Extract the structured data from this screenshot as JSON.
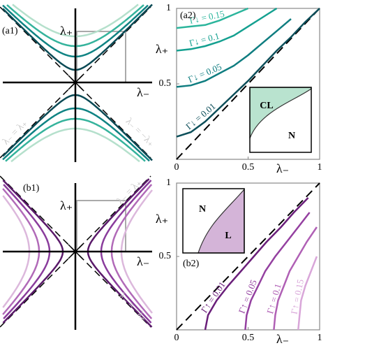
{
  "chart_data": [
    {
      "type": "hyperbola",
      "orientation": "vertical",
      "label": "(a1)",
      "x_label": "λ₋",
      "y_label": "λ₊",
      "annotations": [
        "λ₋ = λ₊",
        "λ₋ = −λ₊"
      ],
      "colors": [
        "#0a4a55",
        "#0f8383",
        "#35b39c",
        "#b5e0cc"
      ]
    },
    {
      "type": "line",
      "label": "(a2)",
      "x_label": "λ₋",
      "y_label": "λ₊",
      "xlim": [
        0,
        1
      ],
      "ylim": [
        0,
        1
      ],
      "xticks": [
        0,
        0.5,
        1
      ],
      "yticks": [
        0.5,
        1
      ],
      "inset_labels": [
        "CL",
        "N"
      ],
      "inset_color": "#b9e3cf",
      "series": [
        {
          "name": "Γ↓ = 0.01",
          "color": "#0d4f5a",
          "x": [
            0,
            0.1,
            0.2,
            0.3,
            0.4,
            0.5,
            0.6,
            0.7,
            0.8,
            0.9,
            1
          ],
          "values": [
            0.15,
            0.18,
            0.25,
            0.34,
            0.43,
            0.52,
            0.62,
            0.72,
            0.81,
            0.91,
            1.0
          ]
        },
        {
          "name": "Γ↓ = 0.05",
          "color": "#0f7d80",
          "x": [
            0,
            0.1,
            0.2,
            0.3,
            0.4,
            0.5,
            0.6,
            0.7,
            0.8
          ],
          "values": [
            0.48,
            0.49,
            0.52,
            0.57,
            0.62,
            0.69,
            0.77,
            0.85,
            0.93
          ]
        },
        {
          "name": "Γ↓ = 0.1",
          "color": "#14a090",
          "x": [
            0,
            0.1,
            0.2,
            0.3,
            0.4,
            0.5,
            0.6,
            0.7
          ],
          "values": [
            0.72,
            0.73,
            0.75,
            0.78,
            0.82,
            0.88,
            0.94,
            1.0
          ]
        },
        {
          "name": "Γ↓ = 0.15",
          "color": "#2bb59c",
          "x": [
            0,
            0.1,
            0.2,
            0.3,
            0.4,
            0.5
          ],
          "values": [
            0.87,
            0.88,
            0.89,
            0.92,
            0.96,
            1.0
          ]
        }
      ]
    },
    {
      "type": "hyperbola",
      "orientation": "horizontal",
      "label": "(b1)",
      "x_label": "λ₋",
      "y_label": "λ₊",
      "annotations": [
        "λ₋ = λ₊",
        "λ₋ = −λ₊"
      ],
      "colors": [
        "#5a1a6a",
        "#8a3c9c",
        "#b16ab8",
        "#dcb8dc"
      ]
    },
    {
      "type": "line",
      "label": "(b2)",
      "x_label": "λ₋",
      "y_label": "λ₊",
      "xlim": [
        0,
        1
      ],
      "ylim": [
        0,
        1
      ],
      "xticks": [
        0,
        0.5,
        1
      ],
      "yticks": [
        0.5,
        1
      ],
      "inset_labels": [
        "N",
        "L"
      ],
      "inset_color": "#d4b4d8",
      "series": [
        {
          "name": "Γ↑ = 0.01",
          "color": "#6a1f7a",
          "x": [
            0.2,
            0.22,
            0.28,
            0.36,
            0.45,
            0.54,
            0.63,
            0.73,
            0.82,
            0.92
          ],
          "values": [
            0,
            0.1,
            0.2,
            0.3,
            0.4,
            0.5,
            0.6,
            0.7,
            0.8,
            0.9
          ]
        },
        {
          "name": "Γ↑ = 0.05",
          "color": "#9440a0",
          "x": [
            0.48,
            0.49,
            0.52,
            0.57,
            0.62,
            0.69,
            0.77,
            0.85,
            0.93
          ],
          "values": [
            0,
            0.1,
            0.2,
            0.3,
            0.4,
            0.5,
            0.6,
            0.7,
            0.8
          ]
        },
        {
          "name": "Γ↑ = 0.1",
          "color": "#b060b5",
          "x": [
            0.68,
            0.69,
            0.71,
            0.75,
            0.79,
            0.85,
            0.91,
            0.98
          ],
          "values": [
            0,
            0.1,
            0.2,
            0.3,
            0.4,
            0.5,
            0.6,
            0.7
          ]
        },
        {
          "name": "Γ↑ = 0.15",
          "color": "#d9a6d9",
          "x": [
            0.85,
            0.86,
            0.87,
            0.9,
            0.94,
            0.98
          ],
          "values": [
            0,
            0.1,
            0.2,
            0.3,
            0.4,
            0.5
          ]
        }
      ]
    }
  ]
}
